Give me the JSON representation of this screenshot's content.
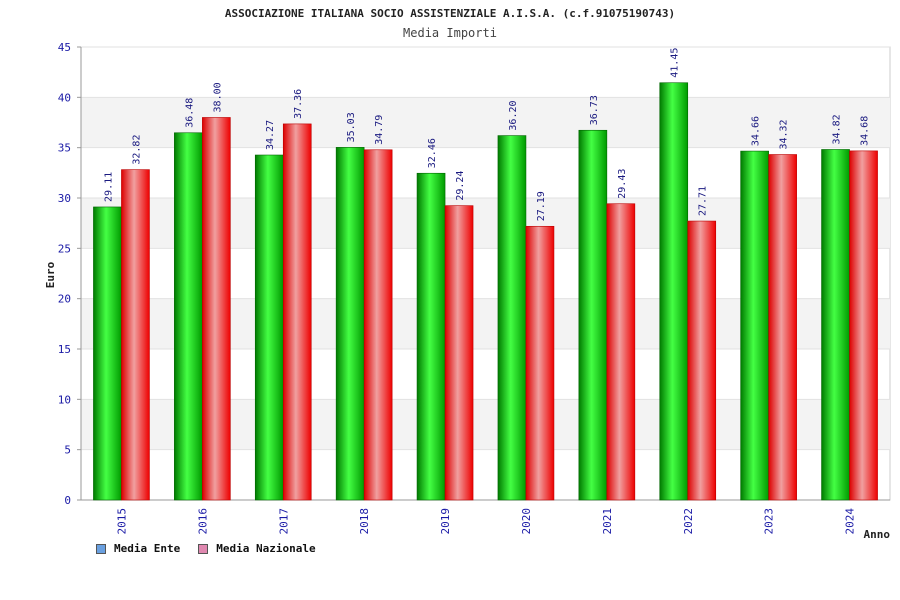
{
  "chart_data": {
    "type": "bar",
    "title": "ASSOCIAZIONE ITALIANA SOCIO ASSISTENZIALE A.I.S.A. (c.f.91075190743)",
    "subtitle": "Media Importi",
    "xlabel": "Anno",
    "ylabel": "Euro",
    "ylim": [
      0,
      45
    ],
    "yticks": [
      "0",
      "5",
      "10",
      "15",
      "20",
      "25",
      "30",
      "35",
      "40",
      "45"
    ],
    "categories": [
      "2015",
      "2016",
      "2017",
      "2018",
      "2019",
      "2020",
      "2021",
      "2022",
      "2023",
      "2024"
    ],
    "series": [
      {
        "name": "Media Ente",
        "values": [
          29.11,
          36.48,
          34.27,
          35.03,
          32.46,
          36.2,
          36.73,
          41.45,
          34.66,
          34.82
        ],
        "labels": [
          "29.11",
          "36.48",
          "34.27",
          "35.03",
          "32.46",
          "36.20",
          "36.73",
          "41.45",
          "34.66",
          "34.82"
        ]
      },
      {
        "name": "Media Nazionale",
        "values": [
          32.82,
          38.0,
          37.36,
          34.79,
          29.24,
          27.19,
          29.43,
          27.71,
          34.32,
          34.68
        ],
        "labels": [
          "32.82",
          "38.00",
          "37.36",
          "34.79",
          "29.24",
          "27.19",
          "29.43",
          "27.71",
          "34.32",
          "34.68"
        ]
      }
    ],
    "legend_position": "bottom-left",
    "grid": true
  },
  "legend_colors": {
    "Media Ente": "#6aa0e0",
    "Media Nazionale": "#e088b0"
  },
  "bar_colors": {
    "Media Ente": {
      "dark": "#007a00",
      "light": "#44ff44"
    },
    "Media Nazionale": {
      "dark": "#dd0000",
      "light": "#f0a0a0"
    }
  }
}
